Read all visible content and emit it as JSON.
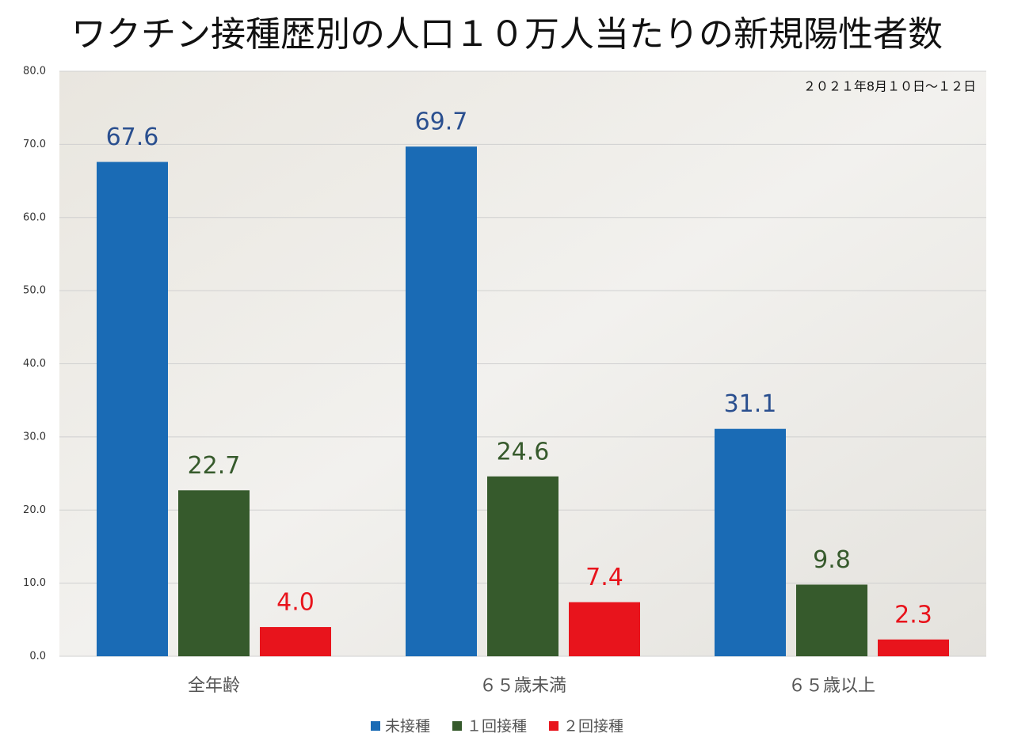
{
  "chart_data": {
    "type": "bar",
    "title": "ワクチン接種歴別の人口１０万人当たりの新規陽性者数",
    "subtitle": "２０２１年8月１０日～１２日",
    "categories": [
      "全年齢",
      "６５歳未満",
      "６５歳以上"
    ],
    "series": [
      {
        "name": "未接種",
        "color": "#1a6bb5",
        "values": [
          67.6,
          69.7,
          31.1
        ]
      },
      {
        "name": "１回接種",
        "color": "#365a2c",
        "values": [
          22.7,
          24.6,
          9.8
        ]
      },
      {
        "name": "２回接種",
        "color": "#e8141c",
        "values": [
          4.0,
          7.4,
          2.3
        ],
        "value_labels": [
          "4.0",
          "7.4",
          "2.3"
        ]
      }
    ],
    "ylim": [
      0,
      80
    ],
    "yticks": [
      {
        "value": 0,
        "label": "0.0"
      },
      {
        "value": 10,
        "label": "10.0"
      },
      {
        "value": 20,
        "label": "20.0"
      },
      {
        "value": 30,
        "label": "30.0"
      },
      {
        "value": 40,
        "label": "40.0"
      },
      {
        "value": 50,
        "label": "50.0"
      },
      {
        "value": 60,
        "label": "60.0"
      },
      {
        "value": 70,
        "label": "70.0"
      },
      {
        "value": 80,
        "label": "80.0"
      }
    ],
    "grid": true
  }
}
